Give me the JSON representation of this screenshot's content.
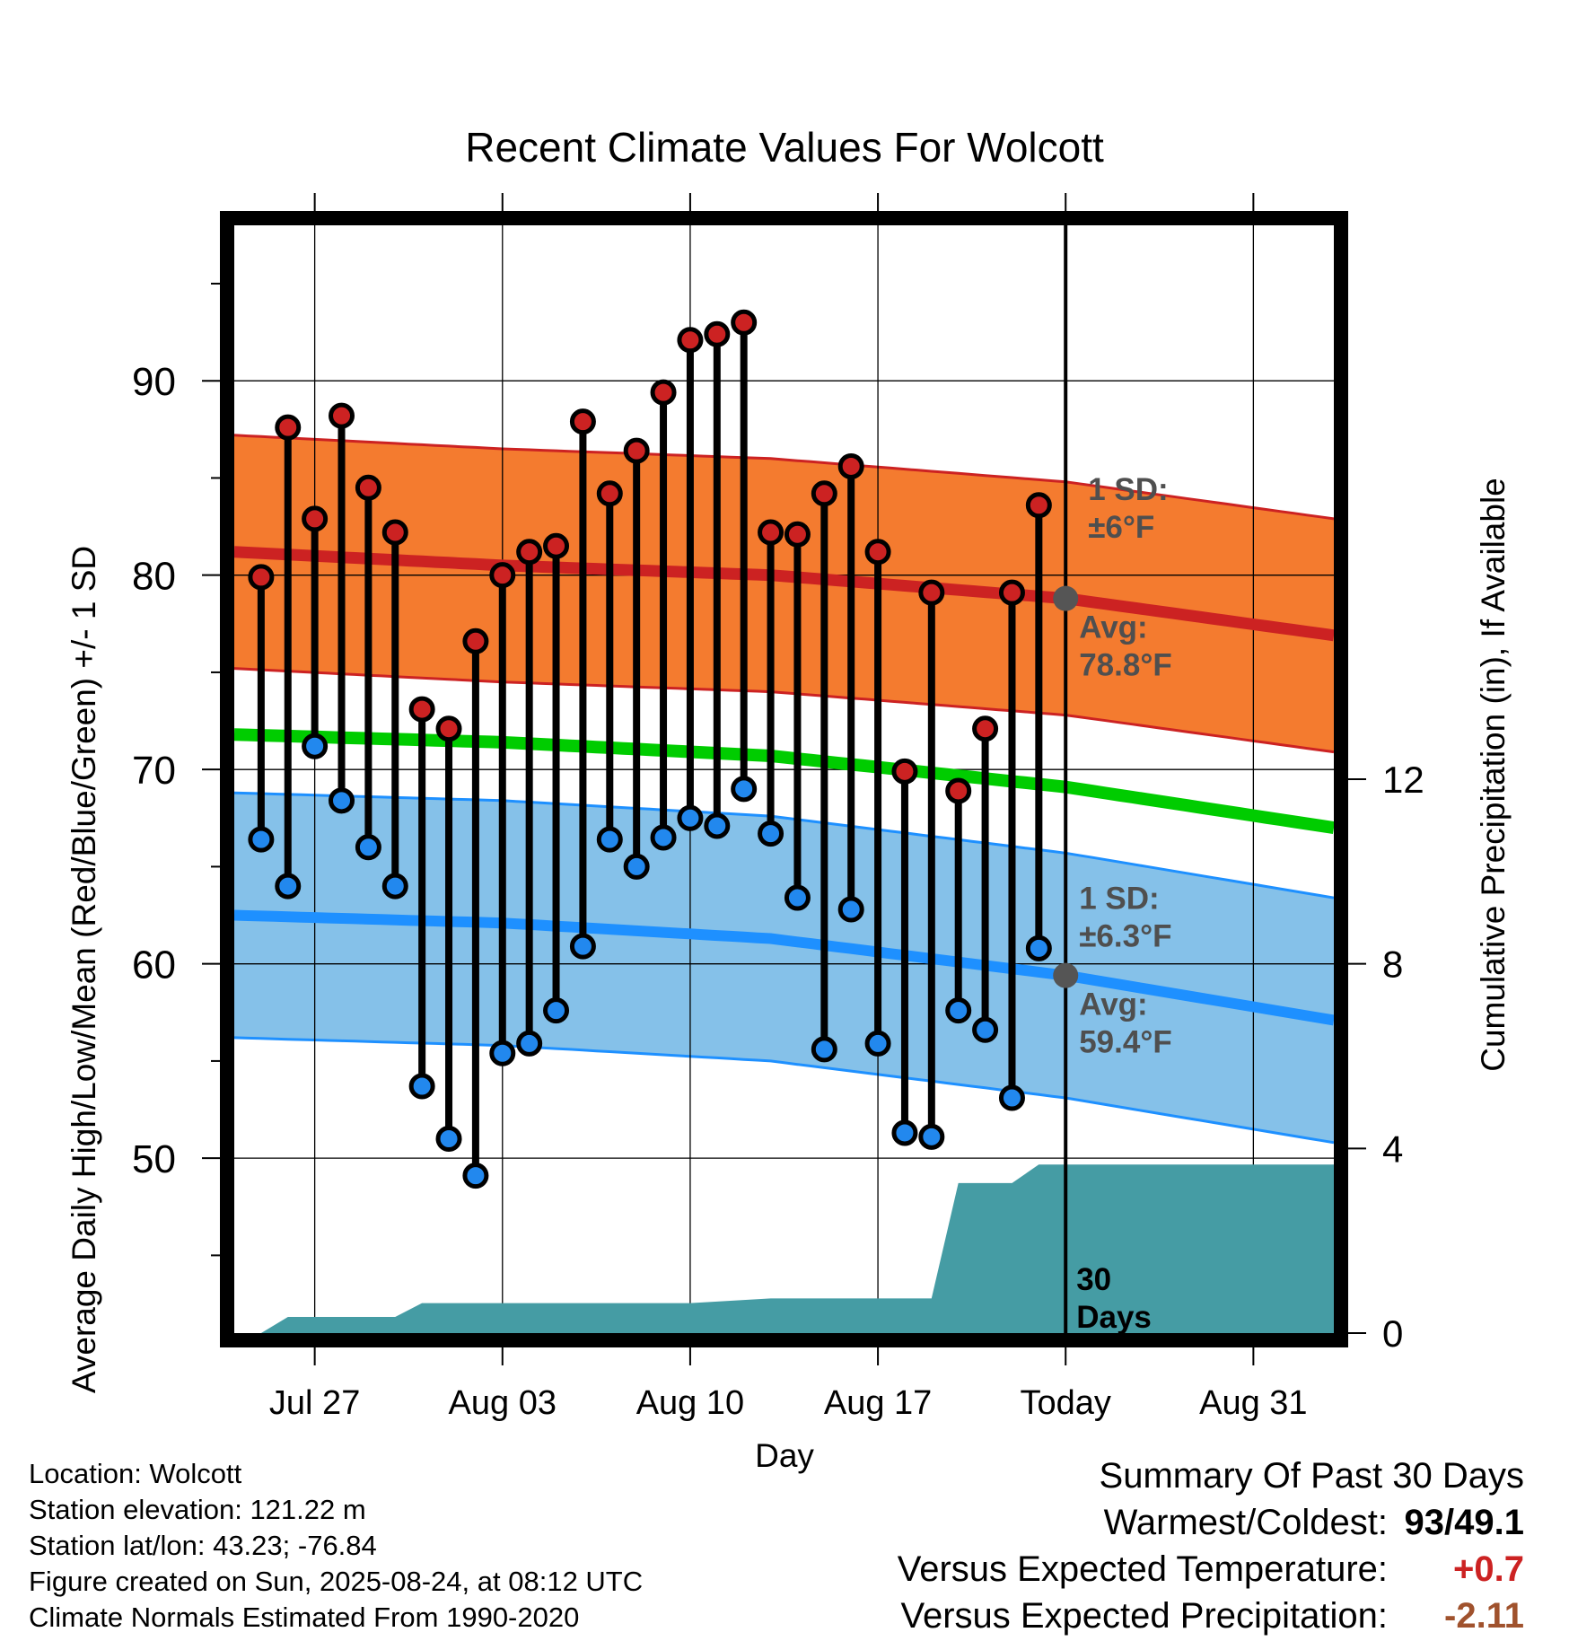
{
  "chart_data": {
    "type": "line",
    "title": "Recent Climate Values For Wolcott",
    "xlabel": "Day",
    "ylabel": "Average Daily High/Low/Mean (Red/Blue/Green) +/- 1 SD",
    "y2label": "Cumulative Precipitation (in), If Available",
    "x_tick_labels": [
      "Jul 27",
      "Aug 03",
      "Aug 10",
      "Aug 17",
      "Today",
      "Aug 31"
    ],
    "x_tick_dates": [
      "2025-07-27",
      "2025-08-03",
      "2025-08-10",
      "2025-08-17",
      "2025-08-24",
      "2025-08-31"
    ],
    "xlim": [
      "2025-07-24",
      "2025-09-03"
    ],
    "ylim": [
      41,
      98
    ],
    "y_ticks": [
      50,
      60,
      70,
      80,
      90
    ],
    "y2lim": [
      0,
      24
    ],
    "y2_ticks": [
      0,
      4,
      8,
      12
    ],
    "grid": true,
    "today": "2025-08-24",
    "daily_obs": {
      "dates": [
        "2025-07-25",
        "2025-07-26",
        "2025-07-27",
        "2025-07-28",
        "2025-07-29",
        "2025-07-30",
        "2025-07-31",
        "2025-08-01",
        "2025-08-02",
        "2025-08-03",
        "2025-08-04",
        "2025-08-05",
        "2025-08-06",
        "2025-08-07",
        "2025-08-08",
        "2025-08-09",
        "2025-08-10",
        "2025-08-11",
        "2025-08-12",
        "2025-08-13",
        "2025-08-14",
        "2025-08-15",
        "2025-08-16",
        "2025-08-17",
        "2025-08-18",
        "2025-08-19",
        "2025-08-20",
        "2025-08-21",
        "2025-08-22",
        "2025-08-23"
      ],
      "high": [
        79.9,
        87.6,
        82.9,
        88.2,
        84.5,
        82.2,
        73.1,
        72.1,
        76.6,
        80.0,
        81.2,
        81.5,
        87.9,
        84.2,
        86.4,
        89.4,
        92.1,
        92.4,
        93.0,
        82.2,
        82.1,
        84.2,
        85.6,
        81.2,
        69.9,
        79.1,
        68.9,
        72.1,
        79.1,
        83.6
      ],
      "low": [
        66.4,
        64.0,
        71.2,
        68.4,
        66.0,
        64.0,
        53.7,
        51.0,
        49.1,
        55.4,
        55.9,
        57.6,
        60.9,
        66.4,
        65.0,
        66.5,
        67.5,
        67.1,
        69.0,
        66.7,
        63.4,
        55.6,
        62.8,
        55.9,
        51.3,
        51.1,
        57.6,
        56.6,
        53.1,
        60.8
      ]
    },
    "normals": {
      "dates": [
        "2025-07-24",
        "2025-08-03",
        "2025-08-13",
        "2025-08-24",
        "2025-09-03"
      ],
      "avg_high": [
        81.2,
        80.5,
        80.0,
        78.8,
        76.9
      ],
      "avg_mean": [
        71.8,
        71.4,
        70.7,
        69.1,
        67.0
      ],
      "avg_low": [
        62.5,
        62.1,
        61.3,
        59.4,
        57.1
      ],
      "high_sd": 6.0,
      "low_sd": 6.3
    },
    "precip": {
      "dates": [
        "2025-07-24",
        "2025-07-25",
        "2025-07-26",
        "2025-07-30",
        "2025-07-31",
        "2025-08-10",
        "2025-08-13",
        "2025-08-19",
        "2025-08-20",
        "2025-08-22",
        "2025-08-23",
        "2025-09-03"
      ],
      "cumulative": [
        0.0,
        0.0,
        0.35,
        0.35,
        0.65,
        0.65,
        0.75,
        0.75,
        3.25,
        3.25,
        3.65,
        3.65
      ]
    },
    "annotations": {
      "high_sd_label_1": "1 SD:",
      "high_sd_label_2": "±6°F",
      "high_avg_label_1": "Avg:",
      "high_avg_label_2": "78.8°F",
      "low_sd_label_1": "1 SD:",
      "low_sd_label_2": "±6.3°F",
      "low_avg_label_1": "Avg:",
      "low_avg_label_2": "59.4°F",
      "precip_label_1": "30",
      "precip_label_2": "Days"
    },
    "colors": {
      "high_obs": "#cc2222",
      "low_obs": "#2288ee",
      "normal_high_line": "#cc2222",
      "normal_high_band": "#f47b2f",
      "normal_mean_line": "#00cc00",
      "normal_low_line": "#1e90ff",
      "normal_low_band": "#85c1e9",
      "precip_fill": "#459ca4",
      "annotation_text": "#4f4f4f"
    }
  },
  "footer": {
    "location": "Location: Wolcott",
    "elevation": "Station elevation: 121.22 m",
    "latlon": "Station lat/lon: 43.23; -76.84",
    "created": "Figure created on Sun, 2025-08-24, at 08:12 UTC",
    "normals": "Climate Normals Estimated From 1990-2020"
  },
  "summary": {
    "title": "Summary Of Past 30 Days",
    "warm_cold_label": "Warmest/Coldest:",
    "warm_cold_value": "93/49.1",
    "temp_label": "Versus Expected Temperature:",
    "temp_value": "+0.7",
    "precip_label": "Versus Expected Precipitation:",
    "precip_value": "-2.11"
  }
}
